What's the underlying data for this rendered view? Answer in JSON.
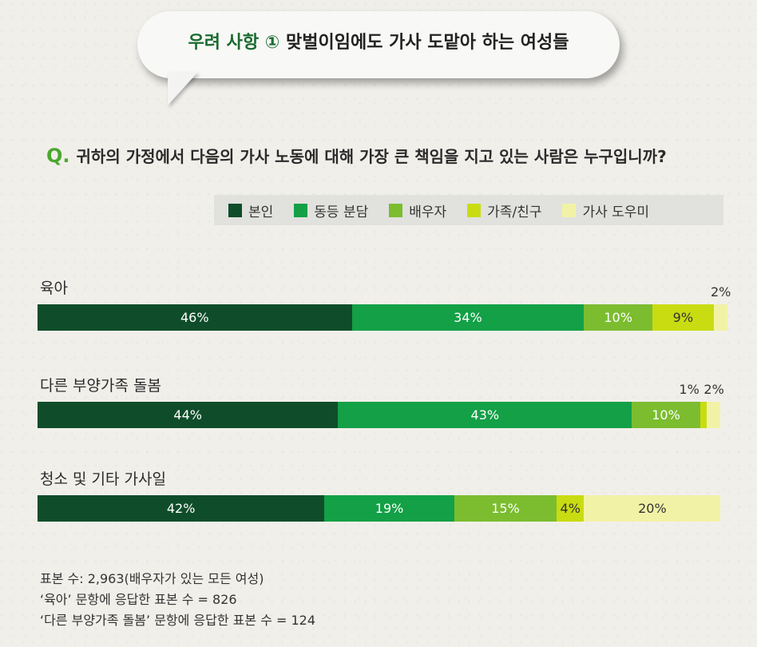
{
  "header": {
    "lead": "우려 사항 ①",
    "title": "맞벌이임에도 가사 도맡아 하는 여성들"
  },
  "question": {
    "prefix": "Q.",
    "text": "귀하의 가정에서 다음의 가사 노동에 대해 가장 큰 책임을 지고 있는 사람은 누구입니까?"
  },
  "notes": [
    "표본 수: 2,963(배우자가 있는 모든 여성)",
    "‘육아’ 문항에 응답한 표본 수 = 826",
    "‘다른 부양가족 돌봄’ 문항에 응답한 표본 수 = 124"
  ],
  "chart_data": {
    "type": "bar",
    "orientation": "horizontal",
    "stacked": true,
    "categories": [
      "육아",
      "다른 부양가족 돌봄",
      "청소 및 기타 가사일"
    ],
    "series": [
      {
        "name": "본인",
        "color": "#0f4d2a",
        "values": [
          46,
          44,
          42
        ]
      },
      {
        "name": "동등 분담",
        "color": "#13a046",
        "values": [
          34,
          43,
          19
        ]
      },
      {
        "name": "배우자",
        "color": "#7bbd2f",
        "values": [
          10,
          10,
          15
        ]
      },
      {
        "name": "가족/친구",
        "color": "#c9dc12",
        "values": [
          9,
          1,
          4
        ]
      },
      {
        "name": "가사 도우미",
        "color": "#f2f2a6",
        "values": [
          2,
          2,
          20
        ]
      }
    ],
    "labels": [
      [
        "46%",
        "34%",
        "10%",
        "9%",
        "2%"
      ],
      [
        "44%",
        "43%",
        "10%",
        "1%",
        "2%"
      ],
      [
        "42%",
        "19%",
        "15%",
        "4%",
        "20%"
      ]
    ],
    "legend_position": "top-right",
    "xlim": [
      0,
      101
    ]
  }
}
